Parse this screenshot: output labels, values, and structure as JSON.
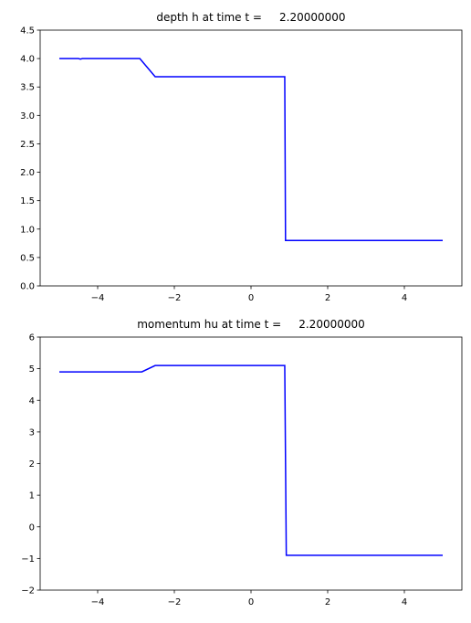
{
  "chart_data": [
    {
      "type": "line",
      "title": "depth h at time t =     2.20000000",
      "xlim": [
        -5.5,
        5.5
      ],
      "xticks": [
        {
          "value": -4,
          "label": "−4"
        },
        {
          "value": -2,
          "label": "−2"
        },
        0,
        2,
        4
      ],
      "ylim": [
        0,
        4.5
      ],
      "yticks": [
        {
          "value": 0,
          "label": "0.0"
        },
        {
          "value": 0.5,
          "label": "0.5"
        },
        {
          "value": 1,
          "label": "1.0"
        },
        {
          "value": 1.5,
          "label": "1.5"
        },
        {
          "value": 2,
          "label": "2.0"
        },
        {
          "value": 2.5,
          "label": "2.5"
        },
        {
          "value": 3,
          "label": "3.0"
        },
        {
          "value": 3.5,
          "label": "3.5"
        },
        {
          "value": 4,
          "label": "4.0"
        },
        {
          "value": 4.5,
          "label": "4.5"
        }
      ],
      "series": [
        {
          "color": "#0000ff",
          "x": [
            -5,
            -4.5,
            -4.45,
            -4.4,
            -2.9,
            -2.5,
            0.88,
            0.9,
            5
          ],
          "values": [
            4.0,
            4.0,
            3.99,
            4.0,
            4.0,
            3.68,
            3.68,
            0.8,
            0.8
          ]
        }
      ]
    },
    {
      "type": "line",
      "title": "momentum hu at time t =     2.20000000",
      "xlim": [
        -5.5,
        5.5
      ],
      "xticks": [
        {
          "value": -4,
          "label": "−4"
        },
        {
          "value": -2,
          "label": "−2"
        },
        0,
        2,
        4
      ],
      "ylim": [
        -2,
        6
      ],
      "yticks": [
        {
          "value": -2,
          "label": "−2"
        },
        {
          "value": -1,
          "label": "−1"
        },
        0,
        1,
        2,
        3,
        4,
        5,
        6
      ],
      "series": [
        {
          "color": "#0000ff",
          "x": [
            -5,
            -2.85,
            -2.5,
            0.88,
            0.92,
            5
          ],
          "values": [
            4.9,
            4.9,
            5.1,
            5.1,
            -0.9,
            -0.9
          ]
        }
      ]
    }
  ]
}
